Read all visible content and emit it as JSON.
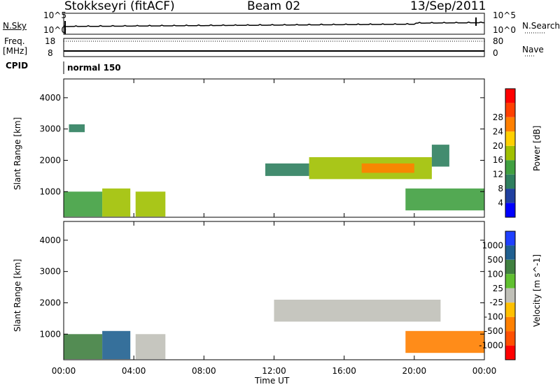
{
  "header": {
    "title": "Stokkseyri (fitACF)",
    "beam": "Beam 02",
    "date": "13/Sep/2011"
  },
  "left_labels": {
    "nsky": "N.Sky",
    "freq": "Freq.",
    "freq_unit": "[MHz]",
    "cpid": "CPID"
  },
  "right_labels": {
    "nsearch": "N.Search",
    "nave": "Nave"
  },
  "noise_axis": {
    "left_top": "10^5",
    "left_bottom": "10^0",
    "right_top": "10^5",
    "right_bottom": "10^0"
  },
  "freq_axis": {
    "left_top": "18",
    "left_bottom": "8",
    "right_top": "80",
    "right_bottom": "0"
  },
  "cpid_text": "normal 150",
  "x_axis": {
    "label": "Time UT",
    "ticks": [
      "00:00",
      "04:00",
      "08:00",
      "12:00",
      "16:00",
      "20:00",
      "00:00"
    ]
  },
  "colors": {
    "power_scale": [
      "#0000ff",
      "#2040a0",
      "#2f7f5f",
      "#40a040",
      "#a0c000",
      "#ffd000",
      "#ff8000",
      "#ff4000",
      "#ff0000"
    ],
    "velocity_scale": [
      "#2040ff",
      "#206090",
      "#408040",
      "#60c030",
      "#c0c0b8",
      "#ffc000",
      "#ff8000",
      "#ff5000",
      "#ff0000"
    ]
  },
  "chart_data": [
    {
      "type": "heatmap",
      "title": "",
      "xlabel": "Time UT",
      "ylabel": "Slant Range [km]",
      "ylim": [
        180,
        4600
      ],
      "yticks": [
        "1000",
        "2000",
        "3000",
        "4000"
      ],
      "colorbar": {
        "label": "Power [dB]",
        "ticks": [
          "4",
          "8",
          "12",
          "16",
          "20",
          "24",
          "28"
        ]
      },
      "regions": [
        {
          "t0": 0.0,
          "t1": 2.2,
          "r0": 200,
          "r1": 1000,
          "value": 14
        },
        {
          "t0": 0.3,
          "t1": 1.2,
          "r0": 2900,
          "r1": 3150,
          "value": 8
        },
        {
          "t0": 2.2,
          "t1": 3.8,
          "r0": 200,
          "r1": 1100,
          "value": 18
        },
        {
          "t0": 4.1,
          "t1": 5.8,
          "r0": 200,
          "r1": 1000,
          "value": 18
        },
        {
          "t0": 11.5,
          "t1": 14.0,
          "r0": 1500,
          "r1": 1900,
          "value": 8
        },
        {
          "t0": 14.0,
          "t1": 21.0,
          "r0": 1400,
          "r1": 2100,
          "value": 16
        },
        {
          "t0": 17.0,
          "t1": 20.0,
          "r0": 1600,
          "r1": 1900,
          "value": 24
        },
        {
          "t0": 21.0,
          "t1": 22.0,
          "r0": 1800,
          "r1": 2500,
          "value": 10
        },
        {
          "t0": 19.5,
          "t1": 24.0,
          "r0": 400,
          "r1": 1100,
          "value": 12
        }
      ]
    },
    {
      "type": "heatmap",
      "title": "",
      "xlabel": "Time UT",
      "ylabel": "Slant Range [km]",
      "ylim": [
        180,
        4600
      ],
      "yticks": [
        "1000",
        "2000",
        "3000",
        "4000"
      ],
      "colorbar": {
        "label": "Velocity [m s^-1]",
        "ticks": [
          "1000",
          "500",
          "100",
          "25",
          "-25",
          "-100",
          "-500",
          "-1000"
        ]
      },
      "regions": [
        {
          "t0": 0.0,
          "t1": 2.2,
          "r0": 200,
          "r1": 1000,
          "value": 50
        },
        {
          "t0": 2.2,
          "t1": 3.8,
          "r0": 200,
          "r1": 1100,
          "value": 300
        },
        {
          "t0": 4.1,
          "t1": 5.8,
          "r0": 200,
          "r1": 1000,
          "value": 0
        },
        {
          "t0": 12.0,
          "t1": 21.5,
          "r0": 1400,
          "r1": 2100,
          "value": 0
        },
        {
          "t0": 19.5,
          "t1": 24.0,
          "r0": 400,
          "r1": 1100,
          "value": -150
        }
      ]
    }
  ]
}
